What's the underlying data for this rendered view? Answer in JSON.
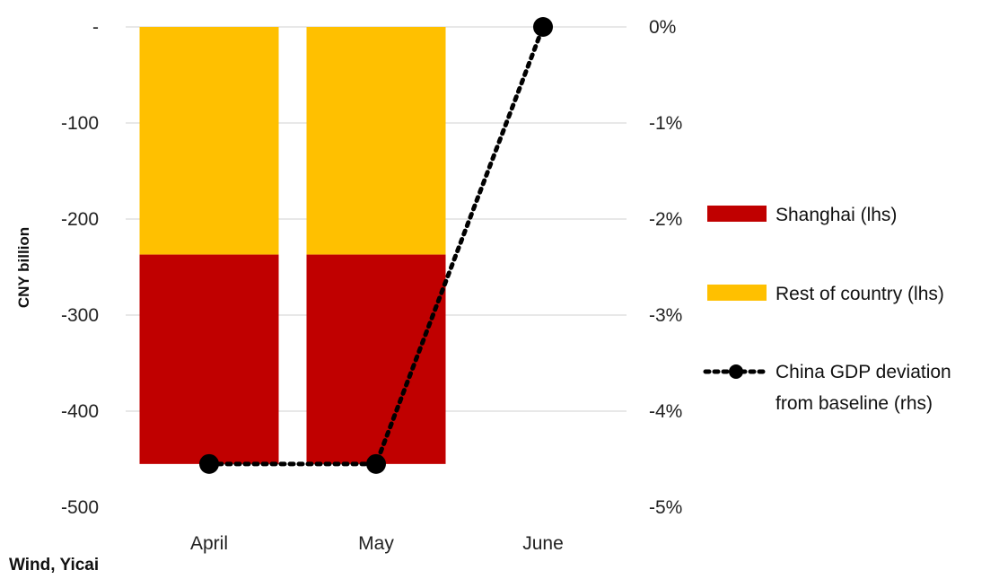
{
  "chart_data": {
    "type": "bar",
    "stacked": true,
    "categories": [
      "April",
      "May",
      "June"
    ],
    "ylabel": "CNY billion",
    "ylim": [
      -500,
      0
    ],
    "y_ticks": [
      0,
      -100,
      -200,
      -300,
      -400,
      -500
    ],
    "y_tick_labels": [
      "-",
      "-100",
      "-200",
      "-300",
      "-400",
      "-500"
    ],
    "y2lim": [
      -5,
      0
    ],
    "y2_ticks": [
      0,
      -1,
      -2,
      -3,
      -4,
      -5
    ],
    "y2_tick_labels": [
      "0%",
      "-1%",
      "-2%",
      "-3%",
      "-4%",
      "-5%"
    ],
    "grid": true,
    "legend_position": "right",
    "series": [
      {
        "name": "Shanghai (lhs)",
        "type": "bar",
        "axis": "left",
        "color": "#C00000",
        "values": [
          -218,
          -218,
          0
        ]
      },
      {
        "name": "Rest of country (lhs)",
        "type": "bar",
        "axis": "left",
        "color": "#FFC000",
        "values": [
          -237,
          -237,
          0
        ]
      },
      {
        "name": "China GDP deviation from baseline (rhs)",
        "type": "line",
        "axis": "right",
        "color": "#000000",
        "style": "dotted-with-markers",
        "values": [
          -4.55,
          -4.55,
          0
        ]
      }
    ]
  },
  "source": "Wind, Yicai"
}
